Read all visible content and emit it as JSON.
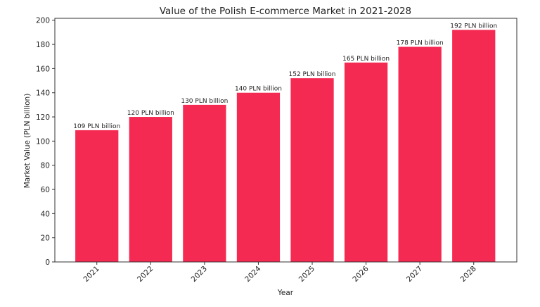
{
  "chart_data": {
    "type": "bar",
    "title": "Value of the Polish E-commerce Market in 2021-2028",
    "xlabel": "Year",
    "ylabel": "Market Value (PLN billion)",
    "categories": [
      "2021",
      "2022",
      "2023",
      "2024",
      "2025",
      "2026",
      "2027",
      "2028"
    ],
    "values": [
      109,
      120,
      130,
      140,
      152,
      165,
      178,
      192
    ],
    "data_labels": [
      "109 PLN billion",
      "120 PLN billion",
      "130 PLN billion",
      "140 PLN billion",
      "152 PLN billion",
      "165 PLN billion",
      "178 PLN billion",
      "192 PLN billion"
    ],
    "ylim": [
      0,
      201.6
    ],
    "yticks": [
      0,
      20,
      40,
      60,
      80,
      100,
      120,
      140,
      160,
      180,
      200
    ],
    "grid": false,
    "bar_color": "#F42A52"
  }
}
